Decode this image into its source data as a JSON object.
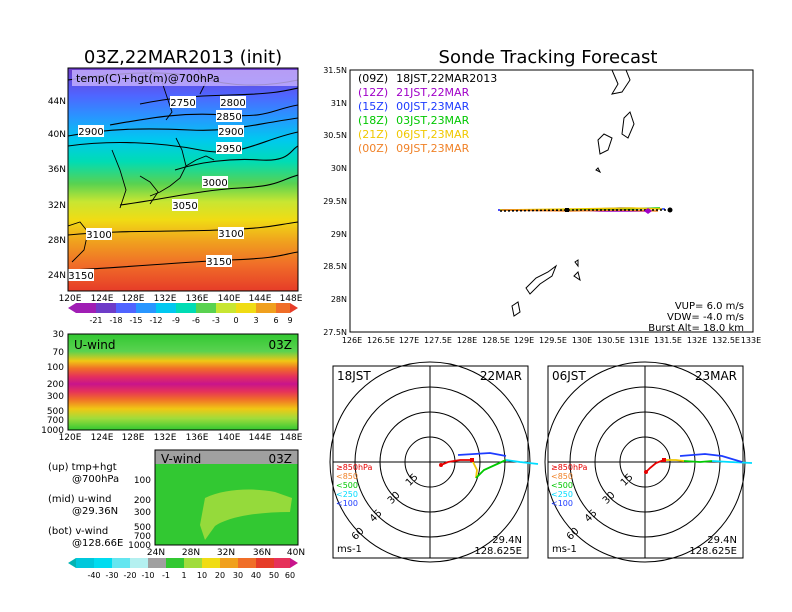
{
  "colors": {
    "track_09z": "#000000",
    "track_12z": "#a000c8",
    "track_15z": "#1e3cff",
    "track_18z": "#00c800",
    "track_21z": "#f0c800",
    "track_00z": "#f08228",
    "level_850": "#e60000",
    "level_500": "#f0c800",
    "level_250": "#00dcff",
    "level_100": "#1e3cff"
  },
  "left": {
    "title": "03Z,22MAR2013 (init)",
    "map": {
      "label": "temp(C)+hgt(m)@700hPa",
      "lat_ticks": [
        "44N",
        "40N",
        "36N",
        "32N",
        "28N",
        "24N"
      ],
      "lon_ticks": [
        "120E",
        "124E",
        "128E",
        "132E",
        "136E",
        "140E",
        "144E",
        "148E"
      ],
      "contour_labels": [
        "2750",
        "2800",
        "2850",
        "2900",
        "2900",
        "2950",
        "3000",
        "3050",
        "3100",
        "3100",
        "3150",
        "3150"
      ],
      "colorbar_labels": [
        "-21",
        "-18",
        "-15",
        "-12",
        "-9",
        "-6",
        "-3",
        "0",
        "3",
        "6",
        "9"
      ]
    },
    "uwind": {
      "label": "U-wind",
      "time": "03Z",
      "p_ticks": [
        "30",
        "70",
        "100",
        "200",
        "300",
        "500",
        "700",
        "1000"
      ],
      "lon_ticks": [
        "120E",
        "124E",
        "128E",
        "132E",
        "136E",
        "140E",
        "144E",
        "148E"
      ]
    },
    "vwind": {
      "label": "V-wind",
      "time": "03Z",
      "p_ticks": [
        "100",
        "200",
        "300",
        "500",
        "700",
        "1000"
      ],
      "lat_ticks": [
        "24N",
        "28N",
        "32N",
        "36N",
        "40N"
      ]
    },
    "notes": [
      {
        "a": "(up) tmp+hgt",
        "b": "@700hPa"
      },
      {
        "a": "(mid) u-wind",
        "b": "@29.36N"
      },
      {
        "a": "(bot) v-wind",
        "b": "@128.66E"
      }
    ],
    "wind_colorbar_labels": [
      "-40",
      "-30",
      "-20",
      "-10",
      "-1",
      "1",
      "10",
      "20",
      "30",
      "40",
      "50",
      "60"
    ]
  },
  "right": {
    "title": "Sonde Tracking Forecast",
    "legend": [
      {
        "code": "(09Z)",
        "text": "18JST,22MAR2013"
      },
      {
        "code": "(12Z)",
        "text": "21JST,22MAR"
      },
      {
        "code": "(15Z)",
        "text": "00JST,23MAR"
      },
      {
        "code": "(18Z)",
        "text": "03JST,23MAR"
      },
      {
        "code": "(21Z)",
        "text": "06JST,23MAR"
      },
      {
        "code": "(00Z)",
        "text": "09JST,23MAR"
      }
    ],
    "lat_ticks": [
      "31.5N",
      "31N",
      "30.5N",
      "30N",
      "29.5N",
      "29N",
      "28.5N",
      "28N",
      "27.5N"
    ],
    "lon_ticks": [
      "126E",
      "126.5E",
      "127E",
      "127.5E",
      "128E",
      "128.5E",
      "129E",
      "129.5E",
      "130E",
      "130.5E",
      "131E",
      "131.5E",
      "132E",
      "132.5E",
      "133E"
    ],
    "params": [
      "VUP=  6.0  m/s",
      "VDW= -4.0  m/s",
      "Burst Alt=  18.0  km"
    ]
  },
  "hodographs": [
    {
      "time": "18JST",
      "date": "22MAR",
      "unit": "ms-1",
      "lat": "29.4N",
      "lon": "128.625E",
      "rings": [
        "15",
        "30",
        "45",
        "60"
      ],
      "levels": [
        {
          "label": "≥850hPa"
        },
        {
          "label": "<850"
        },
        {
          "label": "<500"
        },
        {
          "label": "<250"
        },
        {
          "label": "<100"
        }
      ]
    },
    {
      "time": "06JST",
      "date": "23MAR",
      "unit": "ms-1",
      "lat": "29.4N",
      "lon": "128.625E",
      "rings": [
        "15",
        "30",
        "45",
        "60"
      ],
      "levels": [
        {
          "label": "≥850hPa"
        },
        {
          "label": "<850"
        },
        {
          "label": "<500"
        },
        {
          "label": "<250"
        },
        {
          "label": "<100"
        }
      ]
    }
  ]
}
